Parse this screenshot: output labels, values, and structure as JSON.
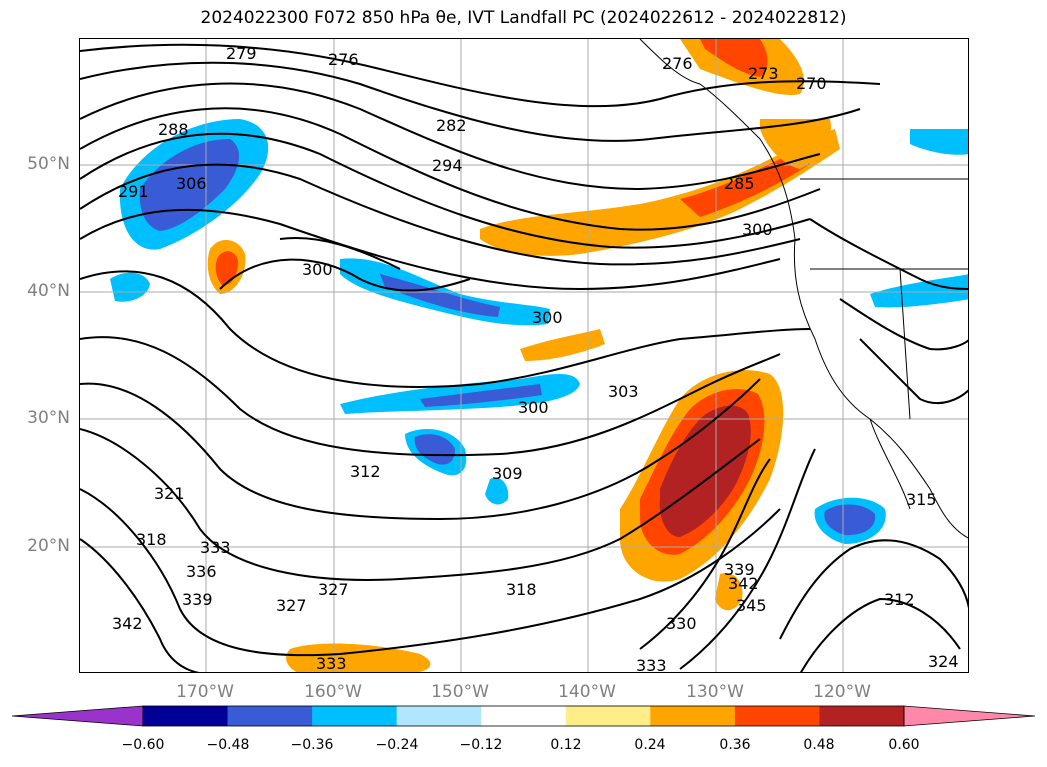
{
  "title": "2024022300 F072 850 hPa θe, IVT Landfall PC (2024022612 - 2024022812)",
  "map": {
    "lat_labels": [
      "50°N",
      "40°N",
      "30°N",
      "20°N"
    ],
    "lon_labels": [
      "170°W",
      "160°W",
      "150°W",
      "140°W",
      "130°W",
      "120°W"
    ],
    "contour_labels": [
      "279",
      "276",
      "276",
      "273",
      "270",
      "288",
      "282",
      "291",
      "294",
      "306",
      "285",
      "300",
      "300",
      "300",
      "303",
      "300",
      "312",
      "309",
      "321",
      "318",
      "333",
      "336",
      "339",
      "342",
      "327",
      "327",
      "318",
      "339",
      "342",
      "345",
      "330",
      "333",
      "315",
      "312",
      "324",
      "333"
    ]
  },
  "colorbar": {
    "tick_labels": [
      "−0.60",
      "−0.48",
      "−0.36",
      "−0.24",
      "−0.12",
      "0.12",
      "0.24",
      "0.36",
      "0.48",
      "0.60"
    ],
    "colors": {
      "under": "#9933cc",
      "bins": [
        "#000096",
        "#3a5bd6",
        "#00bfff",
        "#b2e5ff",
        "#ffffff",
        "#ffee88",
        "#ffa500",
        "#ff4500",
        "#b22222"
      ],
      "over": "#ff88aa"
    }
  }
}
